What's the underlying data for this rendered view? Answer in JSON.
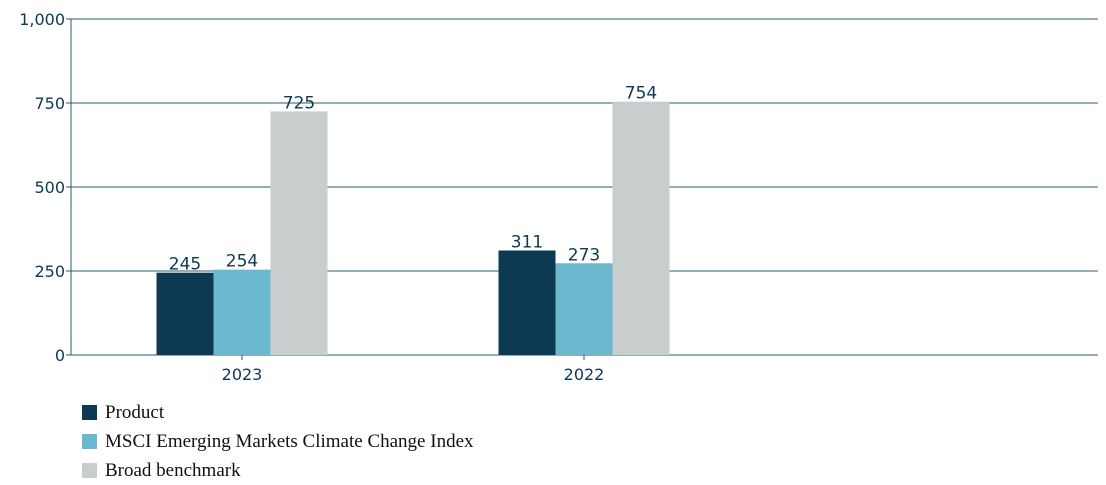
{
  "chart_data": {
    "type": "bar",
    "title": "",
    "xlabel": "",
    "ylabel": "",
    "ylim": [
      0,
      1000
    ],
    "yticks": [
      {
        "value": 0,
        "label": "0"
      },
      {
        "value": 250,
        "label": "250"
      },
      {
        "value": 500,
        "label": "500"
      },
      {
        "value": 750,
        "label": "750"
      },
      {
        "value": 1000,
        "label": "1,000"
      }
    ],
    "categories": [
      "2023",
      "2022"
    ],
    "series": [
      {
        "name": "Product",
        "color": "#0b3a52",
        "values": [
          245,
          311
        ]
      },
      {
        "name": "MSCI Emerging Markets Climate Change Index",
        "color": "#6cb8cf",
        "values": [
          254,
          273
        ]
      },
      {
        "name": "Broad benchmark",
        "color": "#c8cecd",
        "values": [
          725,
          754
        ]
      }
    ],
    "grid": true,
    "legend_position": "bottom-left"
  }
}
